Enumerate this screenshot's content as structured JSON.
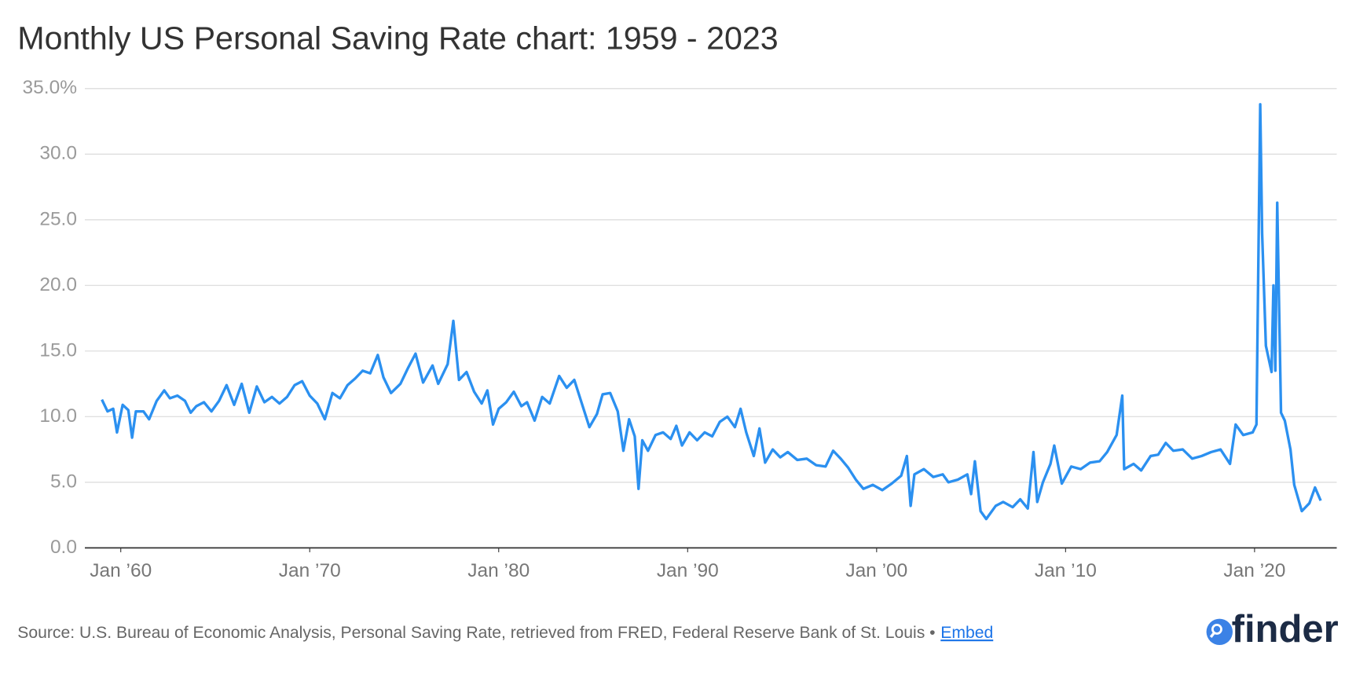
{
  "chart_data": {
    "type": "line",
    "title": "Monthly US Personal Saving Rate chart: 1959 - 2023",
    "color": "#2b90f0",
    "grid": true,
    "x": [
      1959.0,
      1959.3,
      1959.6,
      1959.8,
      1960.1,
      1960.4,
      1960.6,
      1960.8,
      1961.2,
      1961.5,
      1961.9,
      1962.3,
      1962.6,
      1963.0,
      1963.4,
      1963.7,
      1964.0,
      1964.4,
      1964.8,
      1965.2,
      1965.6,
      1966.0,
      1966.4,
      1966.8,
      1967.2,
      1967.6,
      1968.0,
      1968.4,
      1968.8,
      1969.2,
      1969.6,
      1970.0,
      1970.4,
      1970.8,
      1971.2,
      1971.6,
      1972.0,
      1972.4,
      1972.8,
      1973.2,
      1973.6,
      1973.9,
      1974.3,
      1974.8,
      1975.2,
      1975.6,
      1976.0,
      1976.5,
      1976.8,
      1977.3,
      1977.6,
      1977.9,
      1978.3,
      1978.7,
      1979.1,
      1979.4,
      1979.7,
      1980.0,
      1980.4,
      1980.8,
      1981.2,
      1981.5,
      1981.9,
      1982.3,
      1982.7,
      1983.2,
      1983.6,
      1984.0,
      1984.4,
      1984.8,
      1985.2,
      1985.5,
      1985.9,
      1986.3,
      1986.6,
      1986.9,
      1987.2,
      1987.4,
      1987.6,
      1987.9,
      1988.3,
      1988.7,
      1989.1,
      1989.4,
      1989.7,
      1990.1,
      1990.5,
      1990.9,
      1991.3,
      1991.7,
      1992.1,
      1992.5,
      1992.8,
      1993.1,
      1993.5,
      1993.8,
      1994.1,
      1994.5,
      1994.9,
      1995.3,
      1995.8,
      1996.3,
      1996.8,
      1997.3,
      1997.7,
      1998.1,
      1998.5,
      1998.9,
      1999.3,
      1999.8,
      2000.3,
      2000.8,
      2001.3,
      2001.6,
      2001.8,
      2002.0,
      2002.5,
      2003.0,
      2003.5,
      2003.8,
      2004.3,
      2004.8,
      2005.0,
      2005.2,
      2005.5,
      2005.8,
      2006.3,
      2006.7,
      2007.2,
      2007.6,
      2008.0,
      2008.3,
      2008.5,
      2008.8,
      2009.2,
      2009.4,
      2009.8,
      2010.3,
      2010.8,
      2011.3,
      2011.8,
      2012.2,
      2012.7,
      2013.0,
      2013.1,
      2013.6,
      2014.0,
      2014.5,
      2014.9,
      2015.3,
      2015.7,
      2016.2,
      2016.7,
      2017.2,
      2017.7,
      2018.2,
      2018.7,
      2019.0,
      2019.4,
      2019.9,
      2020.1,
      2020.3,
      2020.4,
      2020.6,
      2020.9,
      2021.0,
      2021.1,
      2021.2,
      2021.4,
      2021.6,
      2021.9,
      2022.1,
      2022.5,
      2022.9,
      2023.2,
      2023.5
    ],
    "values": [
      11.3,
      10.4,
      10.6,
      8.8,
      10.9,
      10.5,
      8.4,
      10.4,
      10.4,
      9.8,
      11.2,
      12.0,
      11.4,
      11.6,
      11.2,
      10.3,
      10.8,
      11.1,
      10.4,
      11.2,
      12.4,
      10.9,
      12.5,
      10.3,
      12.3,
      11.1,
      11.5,
      11.0,
      11.5,
      12.4,
      12.7,
      11.6,
      11.0,
      9.8,
      11.8,
      11.4,
      12.4,
      12.9,
      13.5,
      13.3,
      14.7,
      13.0,
      11.8,
      12.5,
      13.7,
      14.8,
      12.6,
      13.9,
      12.5,
      14.0,
      17.3,
      12.8,
      13.4,
      11.9,
      11.0,
      12.0,
      9.4,
      10.6,
      11.1,
      11.9,
      10.8,
      11.1,
      9.7,
      11.5,
      11.0,
      13.1,
      12.2,
      12.8,
      11.0,
      9.2,
      10.2,
      11.7,
      11.8,
      10.4,
      7.4,
      9.8,
      8.5,
      4.5,
      8.2,
      7.4,
      8.6,
      8.8,
      8.3,
      9.3,
      7.8,
      8.8,
      8.2,
      8.8,
      8.5,
      9.6,
      10.0,
      9.2,
      10.6,
      8.8,
      7.0,
      9.1,
      6.5,
      7.5,
      6.9,
      7.3,
      6.7,
      6.8,
      6.3,
      6.2,
      7.4,
      6.8,
      6.1,
      5.2,
      4.5,
      4.8,
      4.4,
      4.9,
      5.5,
      7.0,
      3.2,
      5.6,
      6.0,
      5.4,
      5.6,
      5.0,
      5.2,
      5.6,
      4.1,
      6.6,
      2.8,
      2.2,
      3.2,
      3.5,
      3.1,
      3.7,
      3.0,
      7.3,
      3.5,
      5.0,
      6.4,
      7.8,
      4.9,
      6.2,
      6.0,
      6.5,
      6.6,
      7.3,
      8.6,
      11.6,
      6.0,
      6.4,
      5.9,
      7.0,
      7.1,
      8.0,
      7.4,
      7.5,
      6.8,
      7.0,
      7.3,
      7.5,
      6.4,
      9.4,
      8.6,
      8.8,
      9.4,
      33.8,
      24.0,
      15.4,
      13.4,
      20.0,
      13.5,
      26.3,
      10.3,
      9.7,
      7.5,
      4.8,
      2.8,
      3.4,
      4.6,
      3.6
    ],
    "xlim": [
      1958.1,
      2024.35
    ],
    "xticks": [
      {
        "value": 1960,
        "label": "Jan ’60"
      },
      {
        "value": 1970,
        "label": "Jan ’70"
      },
      {
        "value": 1980,
        "label": "Jan ’80"
      },
      {
        "value": 1990,
        "label": "Jan ’90"
      },
      {
        "value": 2000,
        "label": "Jan ’00"
      },
      {
        "value": 2010,
        "label": "Jan ’10"
      },
      {
        "value": 2020,
        "label": "Jan ’20"
      }
    ],
    "ylim": [
      0,
      35
    ],
    "yticks": [
      {
        "value": 0,
        "label": "0.0"
      },
      {
        "value": 5,
        "label": "5.0"
      },
      {
        "value": 10,
        "label": "10.0"
      },
      {
        "value": 15,
        "label": "15.0"
      },
      {
        "value": 20,
        "label": "20.0"
      },
      {
        "value": 25,
        "label": "25.0"
      },
      {
        "value": 30,
        "label": "30.0"
      },
      {
        "value": 35,
        "label": "35.0%"
      }
    ]
  },
  "footer": {
    "source": "Source: U.S. Bureau of Economic Analysis, Personal Saving Rate, retrieved from FRED, Federal Reserve Bank of St. Louis •",
    "link": "Embed"
  },
  "logo": "finder"
}
